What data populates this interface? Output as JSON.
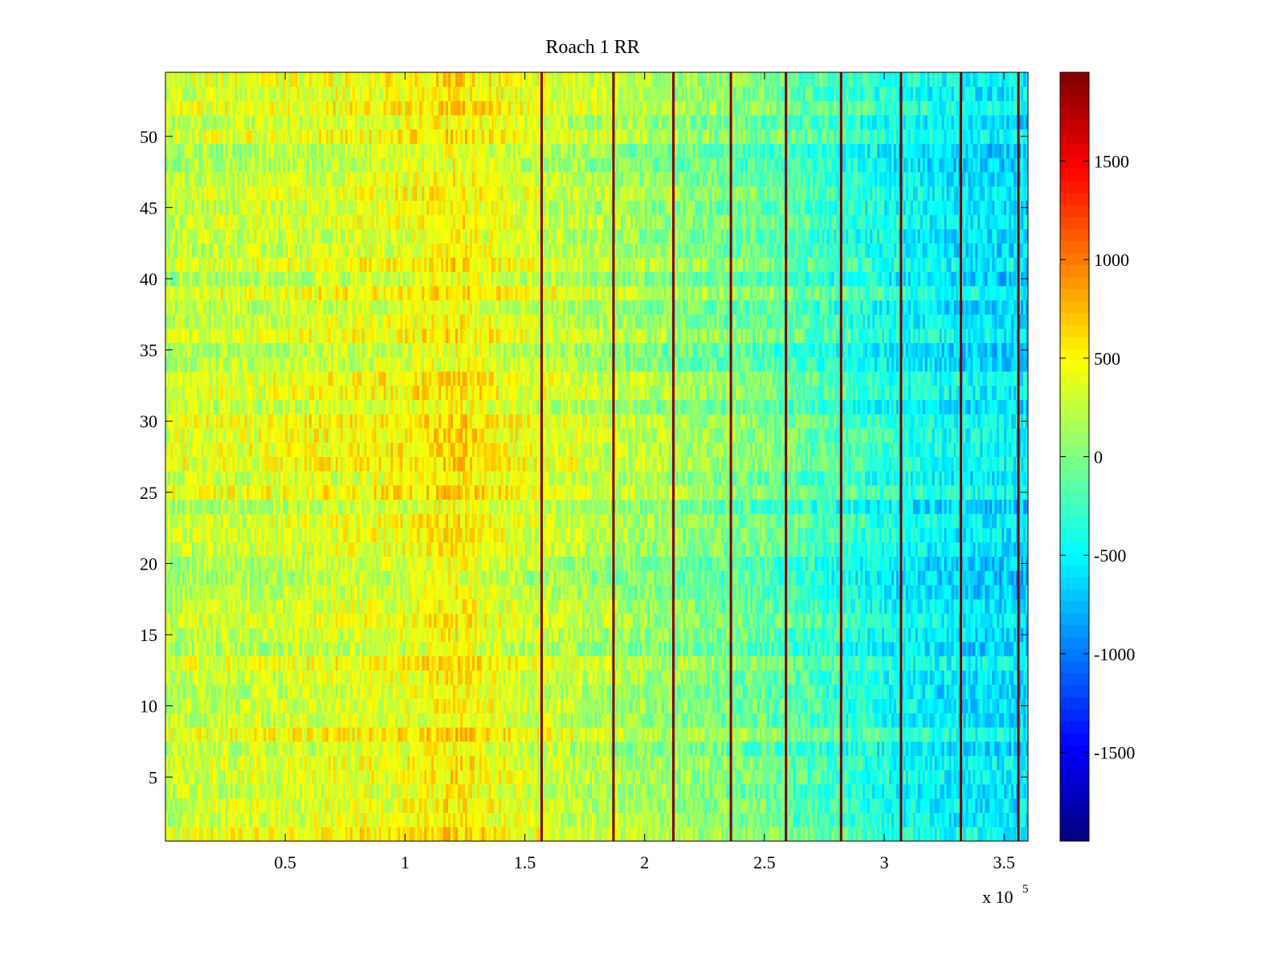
{
  "chart_data": {
    "type": "heatmap",
    "title": "Roach 1 RR",
    "xlabel": "",
    "ylabel": "",
    "x_range": [
      0,
      360000
    ],
    "y_range": [
      0.5,
      54.5
    ],
    "x_ticks": [
      50000,
      100000,
      150000,
      200000,
      250000,
      300000,
      350000
    ],
    "x_tick_labels": [
      "0.5",
      "1",
      "1.5",
      "2",
      "2.5",
      "3",
      "3.5"
    ],
    "x_multiplier_label": "x 10",
    "x_multiplier_exponent": "5",
    "y_ticks": [
      5,
      10,
      15,
      20,
      25,
      30,
      35,
      40,
      45,
      50
    ],
    "y_tick_labels": [
      "5",
      "10",
      "15",
      "20",
      "25",
      "30",
      "35",
      "40",
      "45",
      "50"
    ],
    "rows": 54,
    "colormap": "jet",
    "color_range": [
      -1950,
      1950
    ],
    "colorbar": {
      "ticks": [
        -1500,
        -1000,
        -500,
        0,
        500,
        1000,
        1500
      ],
      "tick_labels": [
        "-1500",
        "-1000",
        "-500",
        "0",
        "500",
        "1000",
        "1500"
      ],
      "placement": "right"
    },
    "vertical_stripes_x": [
      157000,
      187000,
      212000,
      236000,
      259000,
      282000,
      307000,
      332000,
      356000
    ],
    "stripe_value": 1950,
    "value_trend_x": [
      0,
      50000,
      100000,
      120000,
      150000,
      200000,
      250000,
      300000,
      330000,
      360000
    ],
    "value_trend_mean": [
      250,
      330,
      420,
      550,
      330,
      120,
      -80,
      -400,
      -550,
      -600
    ],
    "grid": false,
    "legend": "none"
  }
}
